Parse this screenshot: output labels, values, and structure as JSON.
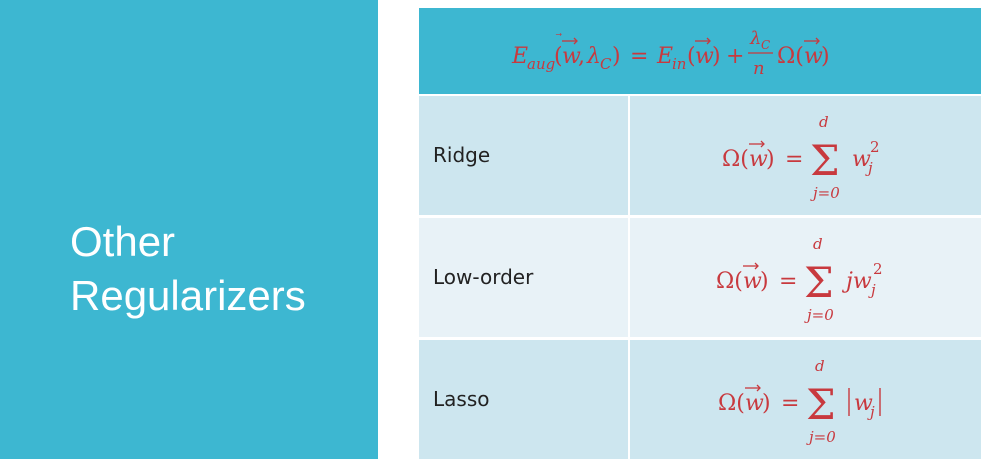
{
  "slide": {
    "title_line1": "Other",
    "title_line2": "Regularizers"
  },
  "table": {
    "header_formula": "E_aug(w⃗, λ_C) = E_in(w⃗) + (λ_C / n) Ω(w⃗)",
    "rows": [
      {
        "name": "Ridge",
        "formula": "Ω(w⃗) = Σ_{j=0}^{d} w_j^2"
      },
      {
        "name": "Low-order",
        "formula": "Ω(w⃗) = Σ_{j=0}^{d} j w_j^2"
      },
      {
        "name": "Lasso",
        "formula": "Ω(w⃗) = Σ_{j=0}^{d} |w_j|"
      }
    ]
  },
  "colors": {
    "panel": "#3db7d1",
    "row_dark": "#cde6ef",
    "row_light": "#e8f2f7",
    "formula": "#c8393e"
  }
}
